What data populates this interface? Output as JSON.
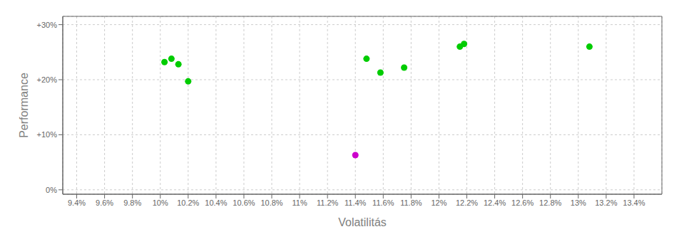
{
  "chart_data": {
    "type": "scatter",
    "xlabel": "Volatilitás",
    "ylabel": "Performance",
    "grid": true,
    "xlim": [
      0.093,
      0.136
    ],
    "ylim": [
      -0.008,
      0.315
    ],
    "xticks": [
      {
        "value": 0.094,
        "label": "9.4%"
      },
      {
        "value": 0.096,
        "label": "9.6%"
      },
      {
        "value": 0.098,
        "label": "9.8%"
      },
      {
        "value": 0.1,
        "label": "10%"
      },
      {
        "value": 0.102,
        "label": "10.2%"
      },
      {
        "value": 0.104,
        "label": "10.4%"
      },
      {
        "value": 0.106,
        "label": "10.6%"
      },
      {
        "value": 0.108,
        "label": "10.8%"
      },
      {
        "value": 0.11,
        "label": "11%"
      },
      {
        "value": 0.112,
        "label": "11.2%"
      },
      {
        "value": 0.114,
        "label": "11.4%"
      },
      {
        "value": 0.116,
        "label": "11.6%"
      },
      {
        "value": 0.118,
        "label": "11.8%"
      },
      {
        "value": 0.12,
        "label": "12%"
      },
      {
        "value": 0.122,
        "label": "12.2%"
      },
      {
        "value": 0.124,
        "label": "12.4%"
      },
      {
        "value": 0.126,
        "label": "12.6%"
      },
      {
        "value": 0.128,
        "label": "12.8%"
      },
      {
        "value": 0.13,
        "label": "13%"
      },
      {
        "value": 0.132,
        "label": "13.2%"
      },
      {
        "value": 0.134,
        "label": "13.4%"
      }
    ],
    "yticks": [
      {
        "value": 0.0,
        "label": "0%"
      },
      {
        "value": 0.1,
        "label": "+10%"
      },
      {
        "value": 0.2,
        "label": "+20%"
      },
      {
        "value": 0.3,
        "label": "+30%"
      }
    ],
    "series": [
      {
        "color": "#00cc00",
        "x": [
          0.1003,
          0.1008,
          0.1013,
          0.102,
          0.1148,
          0.1158,
          0.1175,
          0.1215,
          0.1218,
          0.1308
        ],
        "values": [
          0.232,
          0.238,
          0.228,
          0.197,
          0.238,
          0.213,
          0.222,
          0.26,
          0.265,
          0.26
        ]
      },
      {
        "color": "#cc00cc",
        "x": [
          0.114
        ],
        "values": [
          0.063
        ]
      }
    ]
  }
}
